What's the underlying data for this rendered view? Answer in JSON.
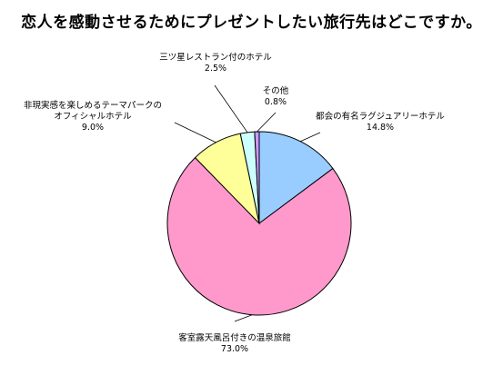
{
  "chart_data": {
    "type": "pie",
    "title": "恋人を感動させるためにプレゼントしたい旅行先はどこですか。",
    "slices": [
      {
        "label": "都会の有名ラグジュアリーホテル",
        "value_label": "14.8%",
        "value": 14.8,
        "color": "#99CCFF"
      },
      {
        "label": "客室露天風呂付きの温泉旅館",
        "value_label": "73.0%",
        "value": 73.0,
        "color": "#FF99CC"
      },
      {
        "label": [
          "非現実感を楽しめるテーマパークの",
          "オフィシャルホテル"
        ],
        "value_label": "9.0%",
        "value": 9.0,
        "color": "#FFFF99"
      },
      {
        "label": "三ツ星レストラン付のホテル",
        "value_label": "2.5%",
        "value": 2.5,
        "color": "#CCFFFF"
      },
      {
        "label": "その他",
        "value_label": "0.8%",
        "value": 0.8,
        "color": "#CC99FF"
      }
    ]
  }
}
